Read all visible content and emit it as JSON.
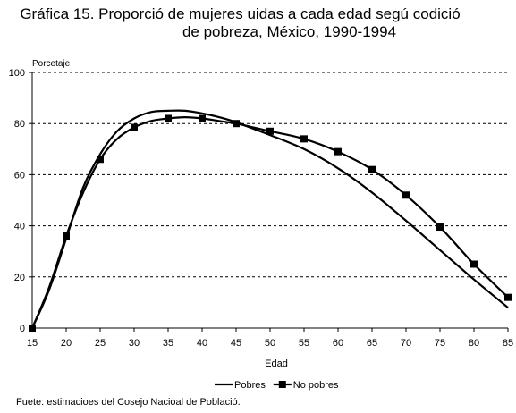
{
  "title_line1": "Gráfica 15. Proporció de mujeres uidas a cada edad segú codició",
  "title_line2": "de pobreza, México, 1990-1994",
  "source": "Fuete: estimacioes del Cosejo Nacioal de Població.",
  "chart_data": {
    "type": "line",
    "ylabel": "Porcetaje",
    "xlabel": "Edad",
    "xlim": [
      15,
      85
    ],
    "ylim": [
      0,
      100
    ],
    "x_ticks": [
      15,
      20,
      25,
      30,
      35,
      40,
      45,
      50,
      55,
      60,
      65,
      70,
      75,
      80,
      85
    ],
    "y_ticks": [
      0,
      20,
      40,
      60,
      80,
      100
    ],
    "grid": "horizontal dashed",
    "legend_position": "bottom-center",
    "series": [
      {
        "name": "Pobres",
        "color": "#000000",
        "marker": "none",
        "points": [
          [
            15,
            0
          ],
          [
            17.5,
            15
          ],
          [
            20,
            35
          ],
          [
            22.5,
            55
          ],
          [
            25,
            68
          ],
          [
            27.5,
            77
          ],
          [
            30,
            82
          ],
          [
            32.5,
            84.5
          ],
          [
            35,
            85
          ],
          [
            37.5,
            85
          ],
          [
            40,
            84
          ],
          [
            42.5,
            82.5
          ],
          [
            45,
            80.5
          ],
          [
            47.5,
            78
          ],
          [
            50,
            75.5
          ],
          [
            55,
            70
          ],
          [
            60,
            62.5
          ],
          [
            65,
            53
          ],
          [
            70,
            42
          ],
          [
            75,
            30.5
          ],
          [
            80,
            19
          ],
          [
            85,
            8
          ]
        ]
      },
      {
        "name": "No pobres",
        "color": "#000000",
        "marker": "square",
        "marker_x": [
          15,
          20,
          25,
          30,
          35,
          40,
          45,
          50,
          55,
          60,
          65,
          70,
          75,
          80,
          85
        ],
        "points": [
          [
            15,
            0
          ],
          [
            17.5,
            16
          ],
          [
            20,
            36
          ],
          [
            22.5,
            53
          ],
          [
            25,
            66
          ],
          [
            27.5,
            74
          ],
          [
            30,
            78.5
          ],
          [
            32.5,
            81
          ],
          [
            35,
            82
          ],
          [
            37.5,
            82.5
          ],
          [
            40,
            82
          ],
          [
            42.5,
            81
          ],
          [
            45,
            80
          ],
          [
            47.5,
            78.5
          ],
          [
            50,
            77
          ],
          [
            55,
            74
          ],
          [
            60,
            69
          ],
          [
            65,
            62
          ],
          [
            70,
            52
          ],
          [
            75,
            39.5
          ],
          [
            80,
            25
          ],
          [
            85,
            12
          ]
        ]
      }
    ]
  }
}
